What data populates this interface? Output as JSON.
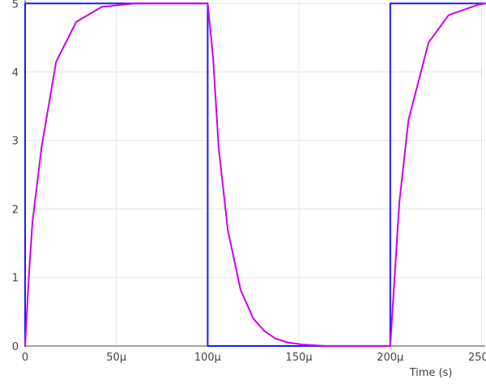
{
  "chart_data": {
    "type": "line",
    "title": "",
    "xlabel": "Time (s)",
    "ylabel": "",
    "xlim": [
      0,
      0.000252
    ],
    "ylim": [
      0,
      5.05
    ],
    "grid": true,
    "legend": "none",
    "x_ticks": [
      {
        "value": 0,
        "label": "0"
      },
      {
        "value": 5e-05,
        "label": "50µ"
      },
      {
        "value": 0.0001,
        "label": "100µ"
      },
      {
        "value": 0.00015,
        "label": "150µ"
      },
      {
        "value": 0.0002,
        "label": "200µ"
      },
      {
        "value": 0.00025,
        "label": "250µ"
      }
    ],
    "y_ticks": [
      {
        "value": 0,
        "label": "0"
      },
      {
        "value": 1,
        "label": "1"
      },
      {
        "value": 2,
        "label": "2"
      },
      {
        "value": 3,
        "label": "3"
      },
      {
        "value": 4,
        "label": "4"
      },
      {
        "value": 5,
        "label": "5"
      }
    ],
    "series": [
      {
        "color": "#1a1aff",
        "points": [
          [
            0,
            0
          ],
          [
            0,
            5
          ],
          [
            0.0001,
            5
          ],
          [
            0.0001,
            0
          ],
          [
            0.0002,
            0
          ],
          [
            0.0002,
            5
          ],
          [
            0.000252,
            5
          ]
        ]
      },
      {
        "color": "#cc00ee",
        "points": [
          [
            0,
            0
          ],
          [
            2e-06,
            1.0
          ],
          [
            4e-06,
            1.8
          ],
          [
            9e-06,
            2.9
          ],
          [
            1.7e-05,
            4.15
          ],
          [
            2.8e-05,
            4.73
          ],
          [
            4.2e-05,
            4.95
          ],
          [
            6e-05,
            5.0
          ],
          [
            0.0001,
            5.0
          ],
          [
            0.000103,
            4.2
          ],
          [
            0.000106,
            2.9
          ],
          [
            0.000111,
            1.7
          ],
          [
            0.000118,
            0.82
          ],
          [
            0.000125,
            0.4
          ],
          [
            0.000131,
            0.22
          ],
          [
            0.000137,
            0.11
          ],
          [
            0.000144,
            0.05
          ],
          [
            0.000152,
            0.02
          ],
          [
            0.000165,
            0.0
          ],
          [
            0.0002,
            0.0
          ],
          [
            0.000205,
            2.1
          ],
          [
            0.00021,
            3.3
          ],
          [
            0.000221,
            4.43
          ],
          [
            0.000232,
            4.83
          ],
          [
            0.000248,
            4.98
          ],
          [
            0.000252,
            5.0
          ]
        ]
      }
    ]
  }
}
